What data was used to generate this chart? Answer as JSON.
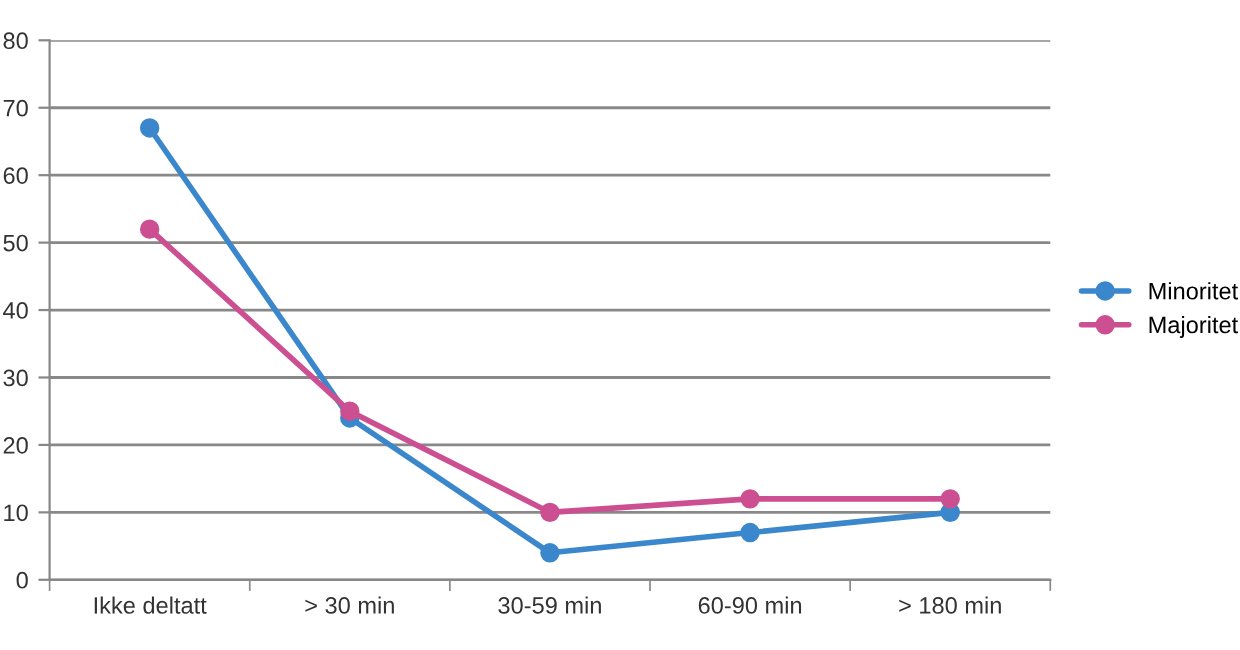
{
  "chart_data": {
    "type": "line",
    "categories": [
      "Ikke deltatt",
      "> 30 min",
      "30-59 min",
      "60-90 min",
      "> 180 min"
    ],
    "series": [
      {
        "name": "Minoritet",
        "color": "#3a87cc",
        "values": [
          67,
          24,
          4,
          7,
          10
        ]
      },
      {
        "name": "Majoritet",
        "color": "#cc4f91",
        "values": [
          52,
          25,
          10,
          12,
          12
        ]
      }
    ],
    "ylim": [
      0,
      80
    ],
    "yticks": [
      0,
      10,
      20,
      30,
      40,
      50,
      60,
      70,
      80
    ],
    "grid": "y",
    "legend": "right",
    "marker": "circle",
    "line_style": "solid"
  }
}
